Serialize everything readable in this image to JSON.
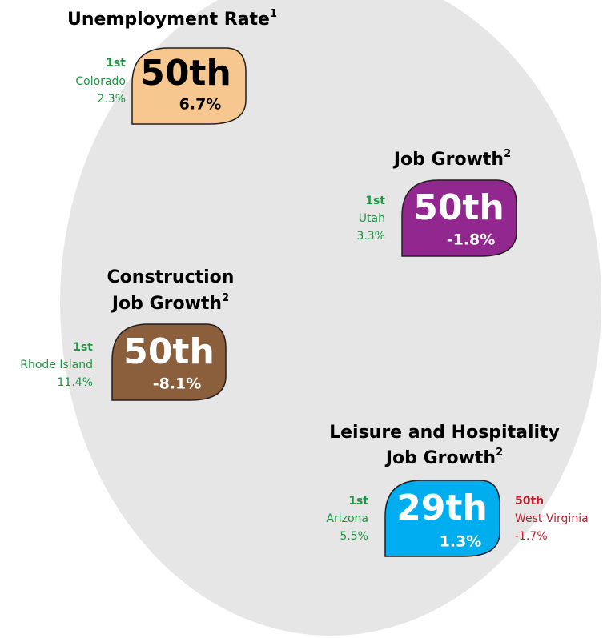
{
  "panels": [
    {
      "title": [
        "Unemployment Rate"
      ],
      "note": "1",
      "rank": "50th",
      "value": "6.7%",
      "best": {
        "rank": "1st",
        "state": "Colorado",
        "value": "2.3%"
      }
    },
    {
      "title": [
        "Job Growth"
      ],
      "note": "2",
      "rank": "50th",
      "value": "-1.8%",
      "best": {
        "rank": "1st",
        "state": "Utah",
        "value": "3.3%"
      }
    },
    {
      "title": [
        "Construction",
        "Job Growth"
      ],
      "note": "2",
      "rank": "50th",
      "value": "-8.1%",
      "best": {
        "rank": "1st",
        "state": "Rhode Island",
        "value": "11.4%"
      }
    },
    {
      "title": [
        "Leisure and Hospitality",
        "Job Growth"
      ],
      "note": "2",
      "rank": "29th",
      "value": "1.3%",
      "best": {
        "rank": "1st",
        "state": "Arizona",
        "value": "5.5%"
      },
      "worst": {
        "rank": "50th",
        "state": "West Virginia",
        "value": "-1.7%"
      }
    }
  ]
}
